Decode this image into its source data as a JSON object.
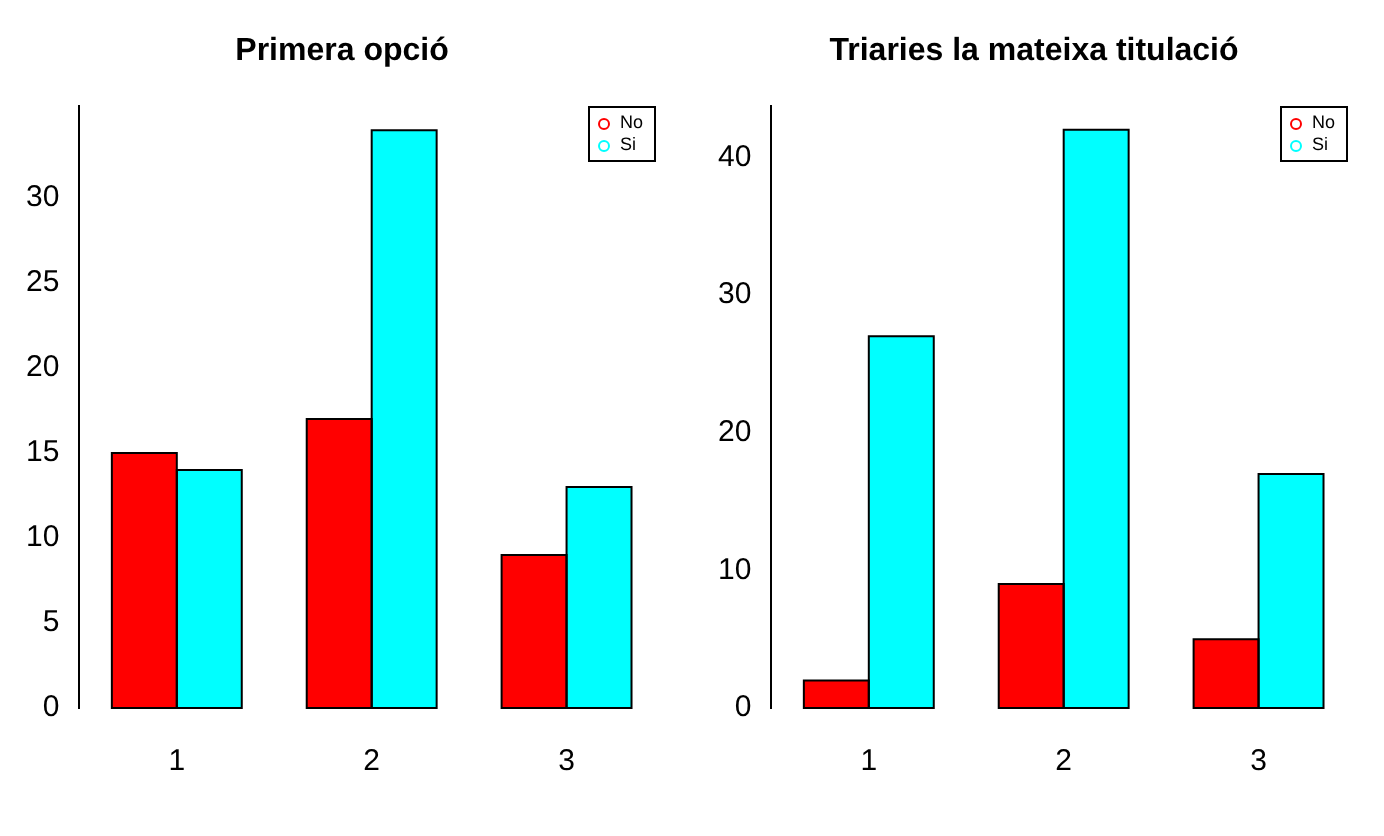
{
  "chart_data": [
    {
      "type": "bar",
      "title": "Primera opció",
      "categories": [
        "1",
        "2",
        "3"
      ],
      "series": [
        {
          "name": "No",
          "color": "#ff0000",
          "values": [
            15,
            17,
            9
          ]
        },
        {
          "name": "Si",
          "color": "#00ffff",
          "values": [
            14,
            34,
            13
          ]
        }
      ],
      "ylim": [
        0,
        35.4
      ],
      "yticks": [
        0,
        5,
        10,
        15,
        20,
        25,
        30
      ],
      "grid": false,
      "legend": "top right",
      "marker": "circle"
    },
    {
      "type": "bar",
      "title": "Triaries la mateixa titulació",
      "categories": [
        "1",
        "2",
        "3"
      ],
      "series": [
        {
          "name": "No",
          "color": "#ff0000",
          "values": [
            2,
            9,
            5
          ]
        },
        {
          "name": "Si",
          "color": "#00ffff",
          "values": [
            27,
            42,
            17
          ]
        }
      ],
      "ylim": [
        0,
        43.7
      ],
      "yticks": [
        0,
        10,
        20,
        30,
        40
      ],
      "grid": false,
      "legend": "top right",
      "marker": "circle"
    }
  ]
}
